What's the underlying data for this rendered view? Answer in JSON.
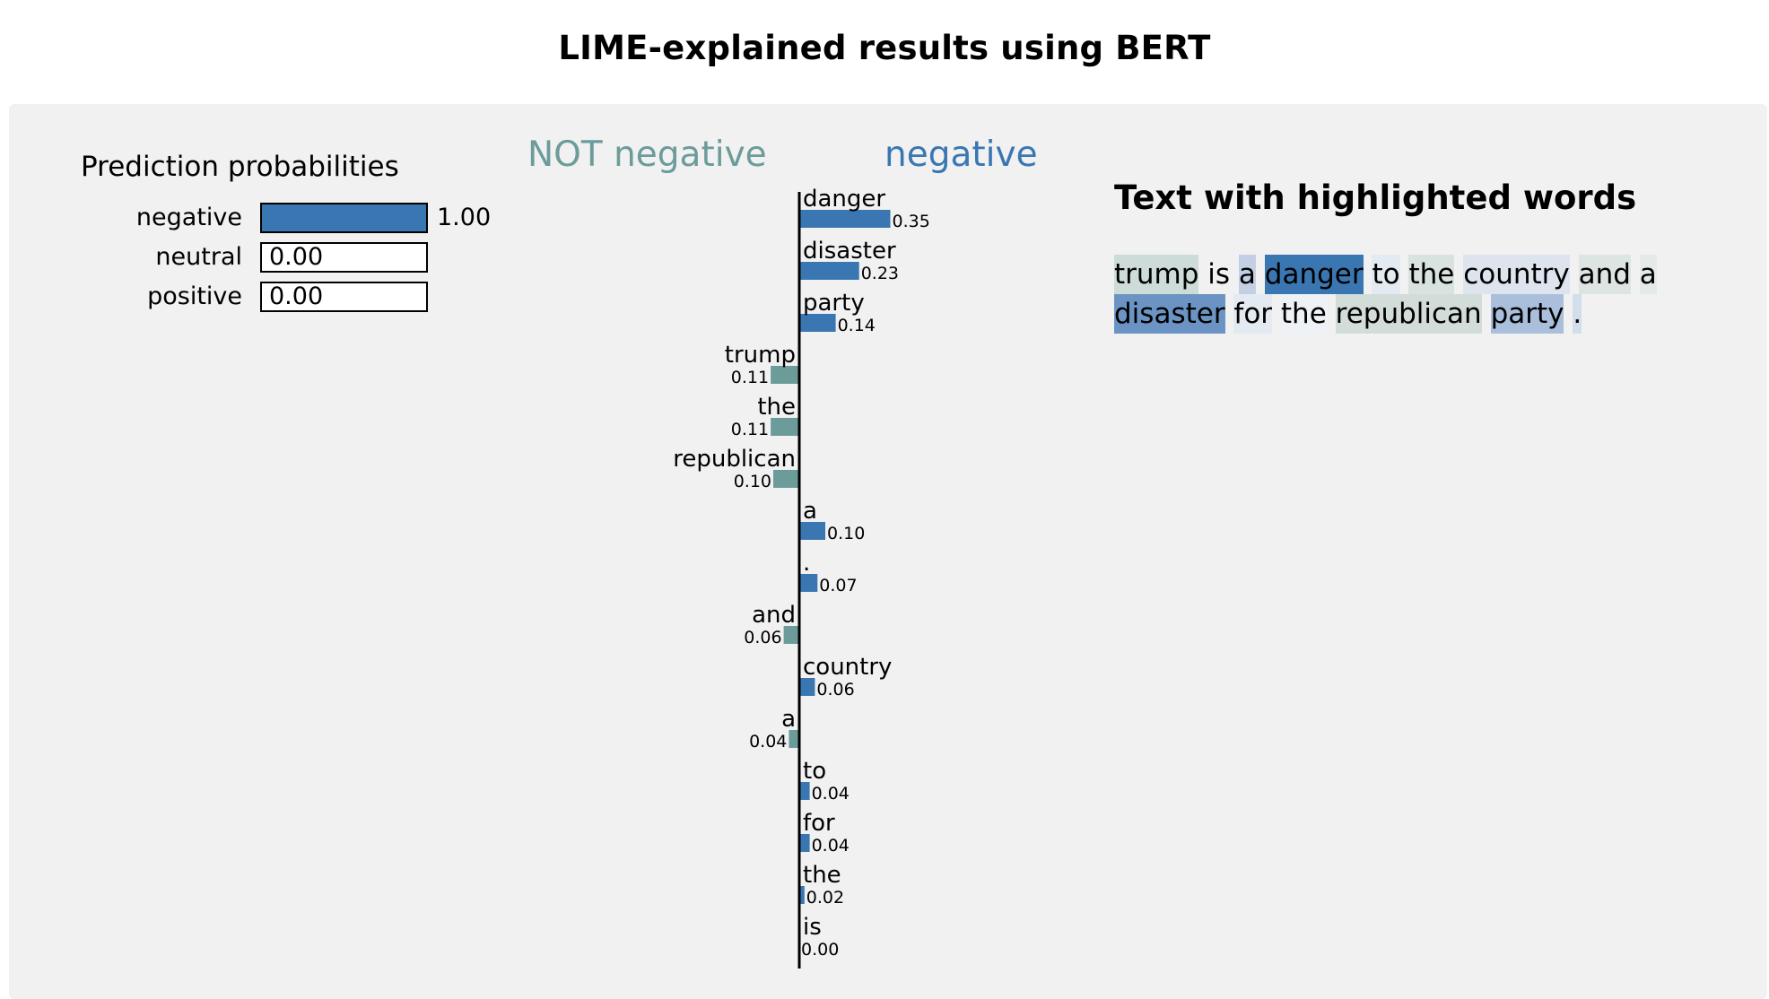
{
  "title": "LIME-explained results using BERT",
  "prediction": {
    "heading": "Prediction probabilities",
    "rows": [
      {
        "label": "negative",
        "value": 1.0,
        "display": "1.00"
      },
      {
        "label": "neutral",
        "value": 0.0,
        "display": "0.00"
      },
      {
        "label": "positive",
        "value": 0.0,
        "display": "0.00"
      }
    ],
    "bar_color": "#3a77b2"
  },
  "classes": {
    "negative_side": "NOT negative",
    "positive_side": "negative",
    "negative_color": "#6c9c9a",
    "positive_color": "#3a77b2"
  },
  "chart_data": {
    "type": "bar",
    "orientation": "horizontal",
    "categories": [
      "danger",
      "disaster",
      "party",
      "trump",
      "the",
      "republican",
      "a",
      ".",
      "and",
      "country",
      "a",
      "to",
      "for",
      "the",
      "is"
    ],
    "values": [
      0.35,
      0.23,
      0.14,
      -0.11,
      -0.11,
      -0.1,
      0.1,
      0.07,
      -0.06,
      0.06,
      -0.04,
      0.04,
      0.04,
      0.02,
      0.0
    ],
    "labels": [
      "0.35",
      "0.23",
      "0.14",
      "0.11",
      "0.11",
      "0.10",
      "0.10",
      "0.07",
      "0.06",
      "0.06",
      "0.04",
      "0.04",
      "0.04",
      "0.02",
      "0.00"
    ]
  },
  "text_panel": {
    "heading": "Text with highlighted words",
    "tokens": [
      {
        "text": "trump",
        "color": "#cddcd8"
      },
      {
        "text": " ",
        "color": null
      },
      {
        "text": "is",
        "color": null
      },
      {
        "text": " ",
        "color": null
      },
      {
        "text": "a",
        "color": "#c3d0e4"
      },
      {
        "text": " ",
        "color": null
      },
      {
        "text": "danger",
        "color": "#3a77b2"
      },
      {
        "text": " ",
        "color": null
      },
      {
        "text": "to",
        "color": "#e4eaf2"
      },
      {
        "text": " ",
        "color": null
      },
      {
        "text": "the",
        "color": "#d8e2de"
      },
      {
        "text": " ",
        "color": null
      },
      {
        "text": "country",
        "color": "#dde4ee"
      },
      {
        "text": " ",
        "color": null
      },
      {
        "text": "and",
        "color": "#dde5e2"
      },
      {
        "text": " ",
        "color": null
      },
      {
        "text": "a",
        "color": "#e4eae8"
      },
      {
        "text": " ",
        "color": null
      },
      {
        "text": "disaster",
        "color": "#6b94c4"
      },
      {
        "text": " ",
        "color": null
      },
      {
        "text": "for",
        "color": "#e4eaf2"
      },
      {
        "text": " ",
        "color": null
      },
      {
        "text": "the",
        "color": "#eef2f7"
      },
      {
        "text": " ",
        "color": null
      },
      {
        "text": "republican",
        "color": "#d2ddd9"
      },
      {
        "text": " ",
        "color": null
      },
      {
        "text": "party",
        "color": "#a9bfdb"
      },
      {
        "text": " ",
        "color": null
      },
      {
        "text": ".",
        "color": "#d3deec"
      }
    ]
  }
}
